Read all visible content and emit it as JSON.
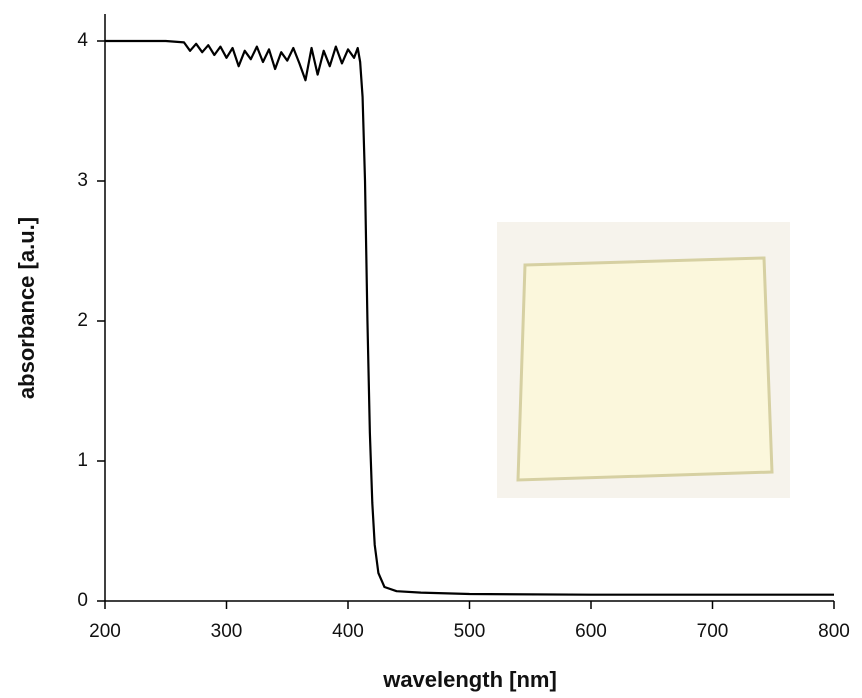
{
  "chart_data": {
    "type": "line",
    "x_label": "wavelength [nm]",
    "y_label": "absorbance [a.u.]",
    "xlim": [
      200,
      800
    ],
    "ylim": [
      0,
      4
    ],
    "xticks": [
      200,
      300,
      400,
      500,
      600,
      700,
      800
    ],
    "yticks": [
      0,
      1,
      2,
      3,
      4
    ],
    "grid": false,
    "series": [
      {
        "color": "#000000",
        "x": [
          200,
          250,
          265,
          270,
          275,
          280,
          285,
          290,
          295,
          300,
          305,
          310,
          315,
          320,
          325,
          330,
          335,
          340,
          345,
          350,
          355,
          360,
          365,
          370,
          375,
          380,
          385,
          390,
          395,
          400,
          405,
          408,
          410,
          412,
          414,
          416,
          418,
          420,
          422,
          425,
          430,
          440,
          460,
          500,
          600,
          700,
          800
        ],
        "values": [
          4.0,
          4.0,
          3.99,
          3.93,
          3.98,
          3.92,
          3.97,
          3.9,
          3.96,
          3.88,
          3.95,
          3.82,
          3.93,
          3.87,
          3.96,
          3.85,
          3.94,
          3.8,
          3.92,
          3.86,
          3.95,
          3.84,
          3.72,
          3.95,
          3.76,
          3.93,
          3.82,
          3.96,
          3.84,
          3.94,
          3.88,
          3.95,
          3.85,
          3.6,
          3.0,
          2.0,
          1.2,
          0.7,
          0.4,
          0.2,
          0.1,
          0.07,
          0.06,
          0.05,
          0.045,
          0.045,
          0.045
        ]
      }
    ]
  }
}
